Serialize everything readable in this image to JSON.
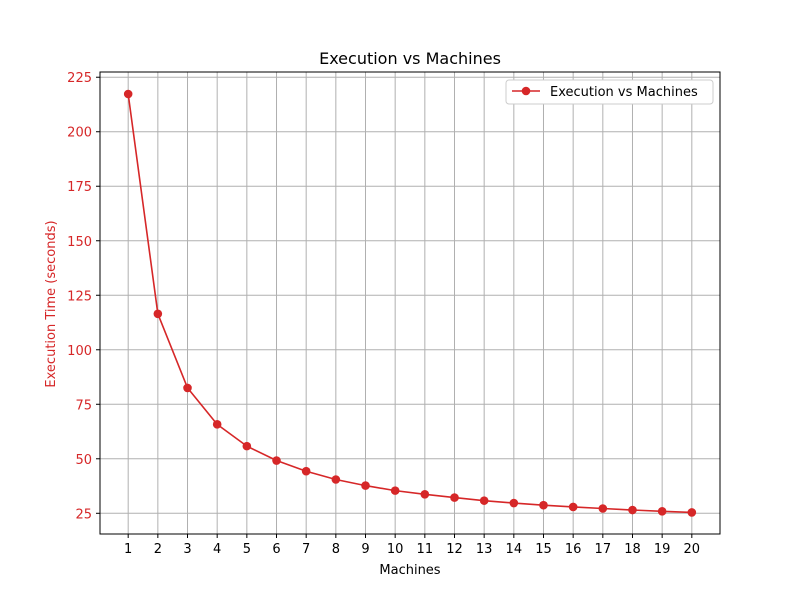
{
  "chart_data": {
    "type": "line",
    "title": "Execution vs Machines",
    "xlabel": "Machines",
    "ylabel": "Execution Time (seconds)",
    "x": [
      1,
      2,
      3,
      4,
      5,
      6,
      7,
      8,
      9,
      10,
      11,
      12,
      13,
      14,
      15,
      16,
      17,
      18,
      19,
      20
    ],
    "xticks": [
      1,
      2,
      3,
      4,
      5,
      6,
      7,
      8,
      9,
      10,
      11,
      12,
      13,
      14,
      15,
      16,
      17,
      18,
      19,
      20
    ],
    "yticks": [
      25,
      50,
      75,
      100,
      125,
      150,
      175,
      200,
      225
    ],
    "xlim": [
      0.05,
      20.95
    ],
    "ylim": [
      15.5,
      227.4
    ],
    "grid": true,
    "legend_position": "top-right",
    "series": [
      {
        "name": "Execution vs Machines",
        "color": "#d62728",
        "marker": "circle",
        "values": [
          217.3,
          116.5,
          82.5,
          65.8,
          55.8,
          49.2,
          44.3,
          40.5,
          37.7,
          35.4,
          33.7,
          32.2,
          30.8,
          29.7,
          28.7,
          27.9,
          27.2,
          26.5,
          25.9,
          25.4
        ]
      }
    ],
    "colors": {
      "ylabel": "#d62728",
      "ytick_label": "#d62728",
      "grid": "#b0b0b0",
      "axes": "#000000"
    }
  }
}
